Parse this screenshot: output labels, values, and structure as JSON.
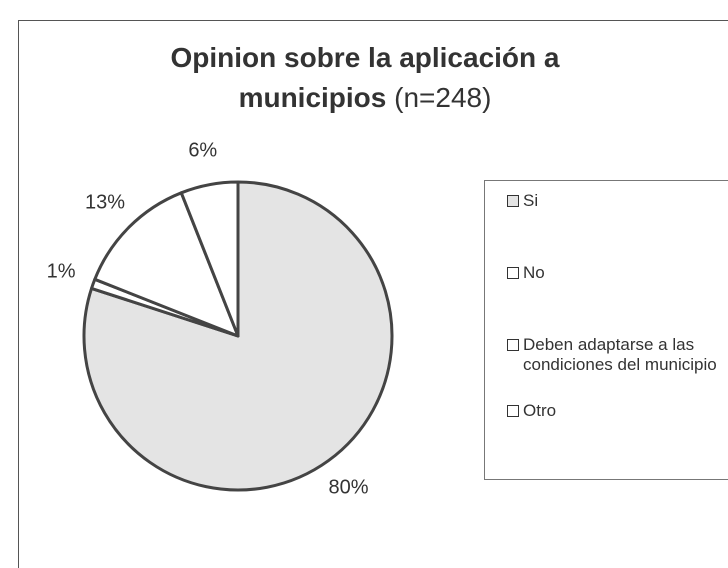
{
  "chart_data": {
    "type": "pie",
    "title": "Opinion sobre la aplicación a municipios",
    "subtitle": "(n=248)",
    "categories": [
      "Si",
      "No",
      "Deben adaptarse a las condiciones del municipio",
      "Otro"
    ],
    "values": [
      80,
      1,
      13,
      6
    ],
    "value_labels": [
      "80%",
      "1%",
      "13%",
      "6%"
    ],
    "colors": [
      "#e4e4e4",
      "#ffffff",
      "#ffffff",
      "#ffffff"
    ],
    "legend": "right"
  }
}
